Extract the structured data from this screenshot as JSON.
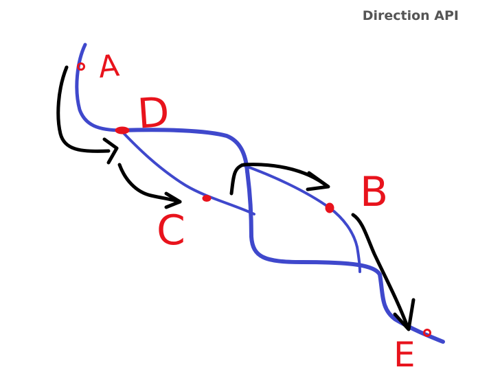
{
  "title": "Direction API",
  "points": [
    {
      "id": "A",
      "label": "A"
    },
    {
      "id": "B",
      "label": "B"
    },
    {
      "id": "C",
      "label": "C"
    },
    {
      "id": "D",
      "label": "D"
    },
    {
      "id": "E",
      "label": "E"
    }
  ],
  "colors": {
    "route": "#3f48cc",
    "marker": "#e8131c",
    "arrow": "#000000",
    "title": "#555555"
  }
}
